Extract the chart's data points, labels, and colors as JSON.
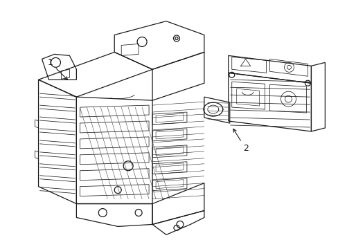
{
  "background_color": "#ffffff",
  "line_color": "#1a1a1a",
  "fig_width": 4.89,
  "fig_height": 3.6,
  "dpi": 100,
  "label1": "1",
  "label2": "2"
}
